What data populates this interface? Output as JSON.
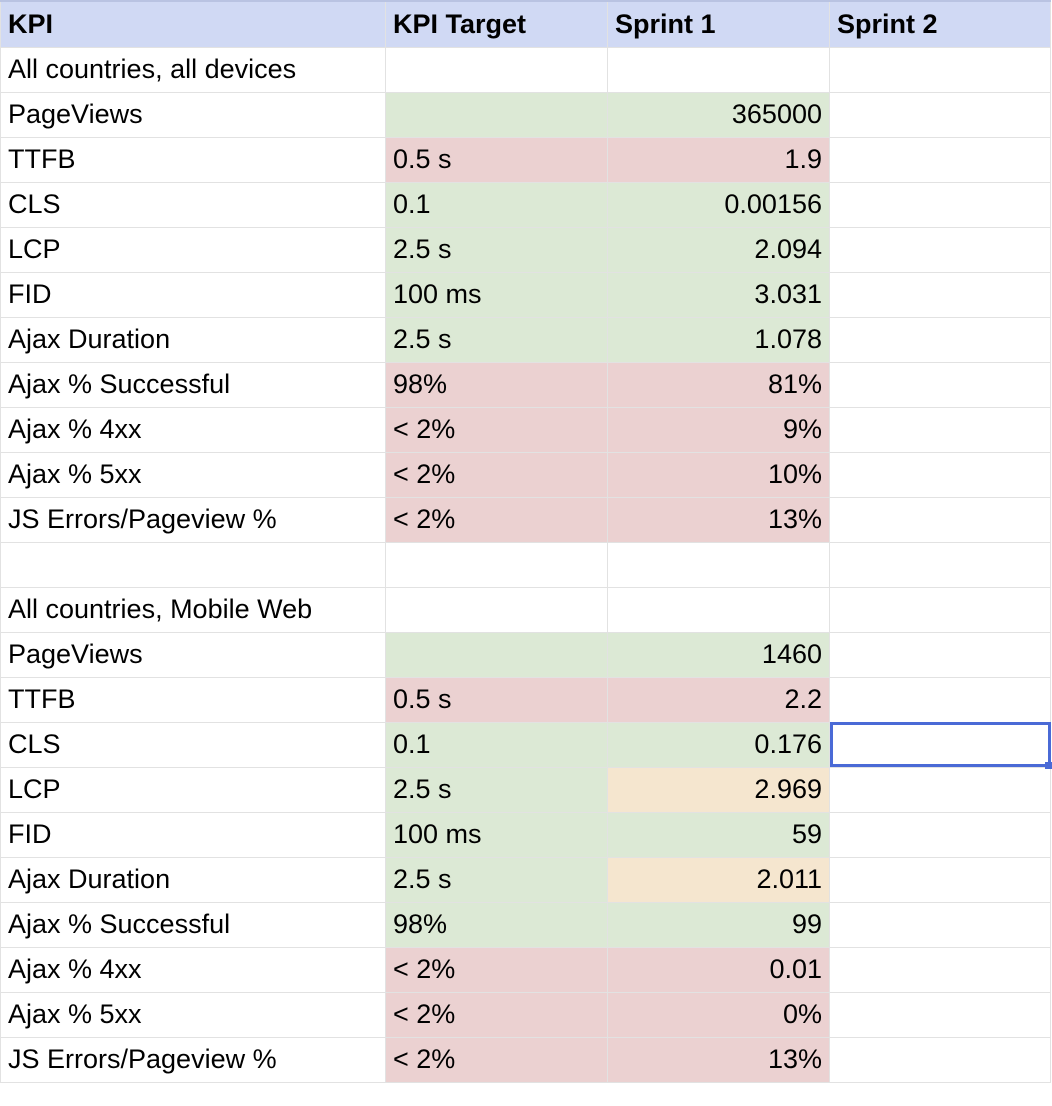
{
  "colors": {
    "header": "#d0d9f4",
    "green": "#dce9d5",
    "red": "#ebd1d1",
    "amber": "#f5e6cf",
    "selection": "#4a6ad6"
  },
  "header": [
    "KPI",
    "KPI Target",
    "Sprint 1",
    "Sprint 2"
  ],
  "rows": [
    {
      "kpi": "All countries, all devices",
      "target": "",
      "target_status": "white",
      "sprint1": "",
      "sprint1_status": "white",
      "sprint2": ""
    },
    {
      "kpi": "PageViews",
      "target": "",
      "target_status": "green",
      "sprint1": "365000",
      "sprint1_status": "green",
      "sprint2": ""
    },
    {
      "kpi": "TTFB",
      "target": "0.5 s",
      "target_status": "red",
      "sprint1": "1.9",
      "sprint1_status": "red",
      "sprint2": ""
    },
    {
      "kpi": "CLS",
      "target": "0.1",
      "target_status": "green",
      "sprint1": "0.00156",
      "sprint1_status": "green",
      "sprint2": ""
    },
    {
      "kpi": "LCP",
      "target": "2.5 s",
      "target_status": "green",
      "sprint1": "2.094",
      "sprint1_status": "green",
      "sprint2": ""
    },
    {
      "kpi": "FID",
      "target": "100 ms",
      "target_status": "green",
      "sprint1": "3.031",
      "sprint1_status": "green",
      "sprint2": ""
    },
    {
      "kpi": "Ajax Duration",
      "target": "2.5 s",
      "target_status": "green",
      "sprint1": "1.078",
      "sprint1_status": "green",
      "sprint2": ""
    },
    {
      "kpi": "Ajax % Successful",
      "target": "98%",
      "target_status": "red",
      "sprint1": "81%",
      "sprint1_status": "red",
      "sprint2": ""
    },
    {
      "kpi": "Ajax % 4xx",
      "target": "< 2%",
      "target_status": "red",
      "sprint1": "9%",
      "sprint1_status": "red",
      "sprint2": ""
    },
    {
      "kpi": "Ajax % 5xx",
      "target": "< 2%",
      "target_status": "red",
      "sprint1": "10%",
      "sprint1_status": "red",
      "sprint2": ""
    },
    {
      "kpi": "JS Errors/Pageview %",
      "target": "< 2%",
      "target_status": "red",
      "sprint1": "13%",
      "sprint1_status": "red",
      "sprint2": ""
    },
    {
      "kpi": "",
      "target": "",
      "target_status": "white",
      "sprint1": "",
      "sprint1_status": "white",
      "sprint2": ""
    },
    {
      "kpi": "All countries, Mobile Web",
      "target": "",
      "target_status": "white",
      "sprint1": "",
      "sprint1_status": "white",
      "sprint2": ""
    },
    {
      "kpi": "PageViews",
      "target": "",
      "target_status": "green",
      "sprint1": "1460",
      "sprint1_status": "green",
      "sprint2": ""
    },
    {
      "kpi": "TTFB",
      "target": "0.5 s",
      "target_status": "red",
      "sprint1": "2.2",
      "sprint1_status": "red",
      "sprint2": ""
    },
    {
      "kpi": "CLS",
      "target": "0.1",
      "target_status": "green",
      "sprint1": "0.176",
      "sprint1_status": "green",
      "sprint2": "",
      "sprint2_selected": true
    },
    {
      "kpi": "LCP",
      "target": "2.5 s",
      "target_status": "green",
      "sprint1": "2.969",
      "sprint1_status": "amber",
      "sprint2": ""
    },
    {
      "kpi": "FID",
      "target": "100 ms",
      "target_status": "green",
      "sprint1": "59",
      "sprint1_status": "green",
      "sprint2": ""
    },
    {
      "kpi": "Ajax Duration",
      "target": "2.5 s",
      "target_status": "green",
      "sprint1": "2.011",
      "sprint1_status": "amber",
      "sprint2": ""
    },
    {
      "kpi": "Ajax % Successful",
      "target": "98%",
      "target_status": "green",
      "sprint1": "99",
      "sprint1_status": "green",
      "sprint2": ""
    },
    {
      "kpi": "Ajax % 4xx",
      "target": "< 2%",
      "target_status": "red",
      "sprint1": "0.01",
      "sprint1_status": "red",
      "sprint2": ""
    },
    {
      "kpi": "Ajax % 5xx",
      "target": "< 2%",
      "target_status": "red",
      "sprint1": "0%",
      "sprint1_status": "red",
      "sprint2": ""
    },
    {
      "kpi": "JS Errors/Pageview %",
      "target": "< 2%",
      "target_status": "red",
      "sprint1": "13%",
      "sprint1_status": "red",
      "sprint2": ""
    }
  ]
}
